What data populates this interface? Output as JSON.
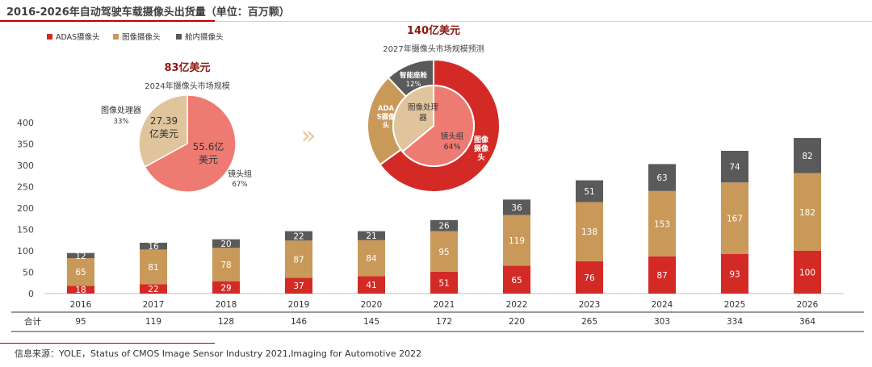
{
  "header": {
    "title": "2016-2026年自动驾驶车载摄像头出货量（单位：百万颗）"
  },
  "source": {
    "text": "信息来源：YOLE，Status of CMOS Image Sensor Industry 2021,Imaging for Automotive 2022"
  },
  "colors": {
    "adas": "#d42a26",
    "image": "#c9995a",
    "inner": "#5a5a5a",
    "lens": "#ee7b72",
    "processor": "#dfc49c",
    "title_red": "#8b1a10"
  },
  "chart_data": [
    {
      "type": "bar",
      "stacked": true,
      "title": "2016-2026年自动驾驶车载摄像头出货量（单位：百万颗）",
      "categories": [
        "2016",
        "2017",
        "2018",
        "2019",
        "2020",
        "2021",
        "2022",
        "2023",
        "2024",
        "2025",
        "2026"
      ],
      "series": [
        {
          "name": "ADAS摄像头",
          "values": [
            18,
            22,
            29,
            37,
            41,
            51,
            65,
            76,
            87,
            93,
            100
          ]
        },
        {
          "name": "图像摄像头",
          "values": [
            65,
            81,
            78,
            87,
            84,
            95,
            119,
            138,
            153,
            167,
            182
          ]
        },
        {
          "name": "舱内摄像头",
          "values": [
            12,
            16,
            20,
            22,
            21,
            26,
            36,
            51,
            63,
            74,
            82
          ]
        }
      ],
      "ylim": [
        0,
        400
      ],
      "yticks": [
        0,
        50,
        100,
        150,
        200,
        250,
        300,
        350,
        400
      ],
      "legend": "top-left",
      "totals_label": "合计",
      "totals": [
        95,
        119,
        128,
        146,
        145,
        172,
        220,
        265,
        303,
        334,
        364
      ]
    },
    {
      "type": "pie",
      "headline": "83亿美元",
      "title": "2024年摄像头市场规模",
      "slices": [
        {
          "name": "镜头组",
          "value": 55.6,
          "value_label": "55.6亿美元",
          "percent": "67%"
        },
        {
          "name": "图像处理器",
          "value": 27.39,
          "value_label": "27.39亿美元",
          "percent": "33%"
        }
      ]
    },
    {
      "type": "donut",
      "headline": "140亿美元",
      "title": "2027年摄像头市场规模预测",
      "inner": [
        {
          "name": "镜头组",
          "value": 64,
          "label": "镜头组",
          "percent": "64%"
        },
        {
          "name": "图像处理器",
          "value": 36,
          "label": "图像处理器"
        }
      ],
      "outer": [
        {
          "name": "图像摄像头",
          "value": 65,
          "label": "图像摄像头"
        },
        {
          "name": "ADAS摄像头",
          "value": 23,
          "label": "ADAS摄像头"
        },
        {
          "name": "智能座舱",
          "value": 12,
          "label": "智能座舱",
          "percent": "12%"
        }
      ],
      "arrow": "»"
    }
  ]
}
